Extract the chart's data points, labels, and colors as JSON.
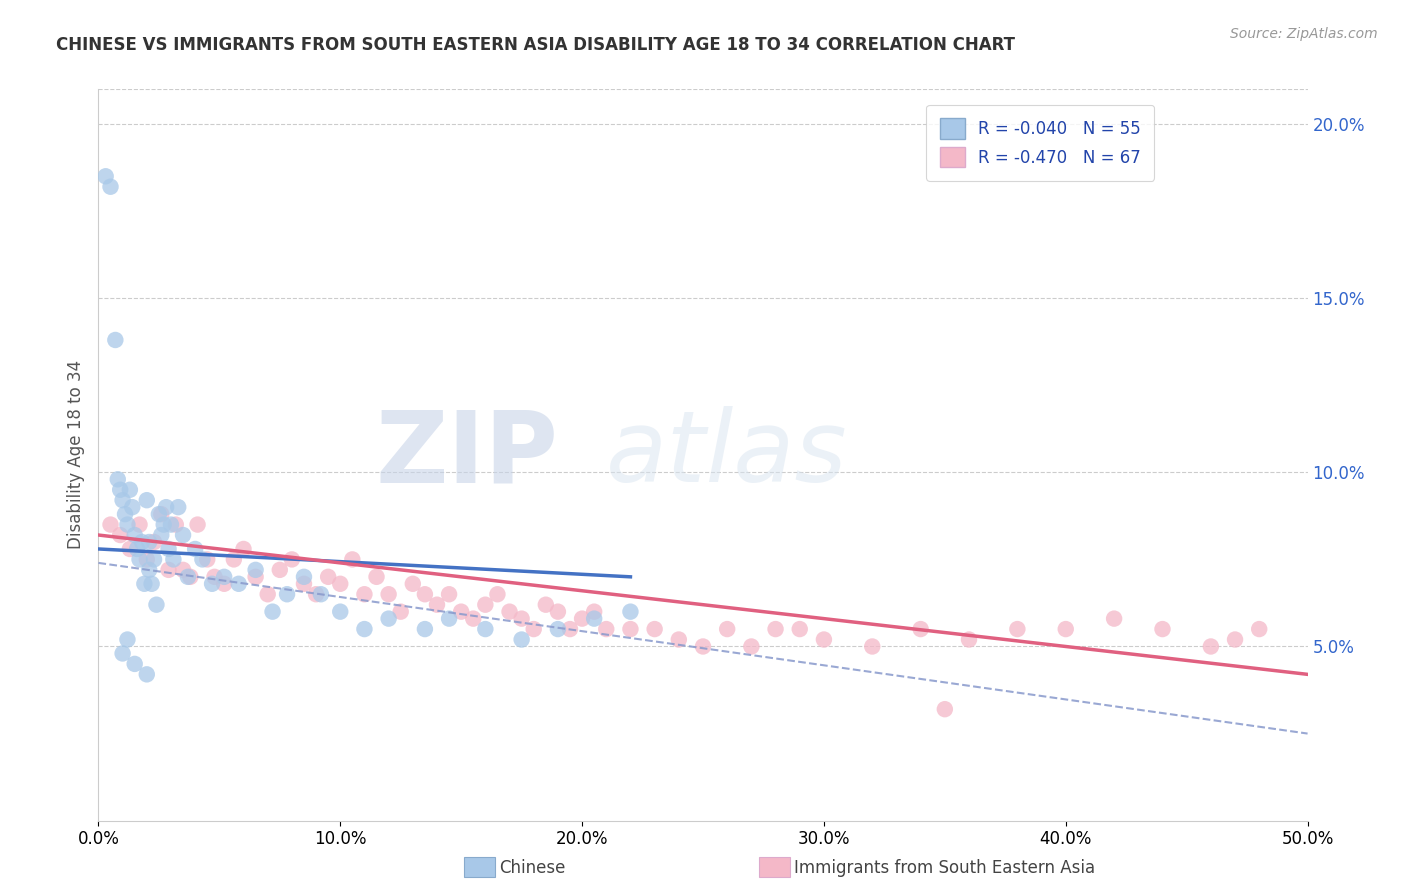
{
  "title": "CHINESE VS IMMIGRANTS FROM SOUTH EASTERN ASIA DISABILITY AGE 18 TO 34 CORRELATION CHART",
  "source": "Source: ZipAtlas.com",
  "ylabel": "Disability Age 18 to 34",
  "xlim": [
    0,
    50
  ],
  "ylim": [
    0,
    21
  ],
  "chinese_color": "#a8c8e8",
  "sea_color": "#f4b8c8",
  "chinese_line_color": "#4472c4",
  "sea_line_color": "#e06080",
  "chinese_dash_color": "#8899cc",
  "legend_R_chinese": "R = -0.040",
  "legend_N_chinese": "N = 55",
  "legend_R_sea": "R = -0.470",
  "legend_N_sea": "N = 67",
  "background_color": "#ffffff",
  "grid_color": "#cccccc",
  "chinese_x": [
    0.3,
    0.5,
    0.7,
    0.8,
    0.9,
    1.0,
    1.1,
    1.2,
    1.3,
    1.4,
    1.5,
    1.6,
    1.7,
    1.8,
    1.9,
    2.0,
    2.1,
    2.1,
    2.2,
    2.3,
    2.4,
    2.5,
    2.6,
    2.7,
    2.8,
    2.9,
    3.0,
    3.1,
    3.3,
    3.5,
    3.7,
    4.0,
    4.3,
    4.7,
    5.2,
    5.8,
    6.5,
    7.2,
    7.8,
    8.5,
    9.2,
    10.0,
    11.0,
    12.0,
    13.5,
    14.5,
    16.0,
    17.5,
    19.0,
    20.5,
    22.0,
    1.0,
    1.2,
    1.5,
    2.0
  ],
  "chinese_y": [
    18.5,
    18.2,
    13.8,
    9.8,
    9.5,
    9.2,
    8.8,
    8.5,
    9.5,
    9.0,
    8.2,
    7.8,
    7.5,
    8.0,
    6.8,
    9.2,
    8.0,
    7.2,
    6.8,
    7.5,
    6.2,
    8.8,
    8.2,
    8.5,
    9.0,
    7.8,
    8.5,
    7.5,
    9.0,
    8.2,
    7.0,
    7.8,
    7.5,
    6.8,
    7.0,
    6.8,
    7.2,
    6.0,
    6.5,
    7.0,
    6.5,
    6.0,
    5.5,
    5.8,
    5.5,
    5.8,
    5.5,
    5.2,
    5.5,
    5.8,
    6.0,
    4.8,
    5.2,
    4.5,
    4.2
  ],
  "sea_x": [
    0.5,
    0.9,
    1.3,
    1.7,
    2.0,
    2.3,
    2.6,
    2.9,
    3.2,
    3.5,
    3.8,
    4.1,
    4.5,
    4.8,
    5.2,
    5.6,
    6.0,
    6.5,
    7.0,
    7.5,
    8.0,
    8.5,
    9.0,
    9.5,
    10.0,
    10.5,
    11.0,
    11.5,
    12.0,
    12.5,
    13.0,
    13.5,
    14.0,
    14.5,
    15.0,
    15.5,
    16.0,
    16.5,
    17.0,
    17.5,
    18.0,
    18.5,
    19.0,
    19.5,
    20.0,
    20.5,
    21.0,
    22.0,
    23.0,
    24.0,
    25.0,
    26.0,
    27.0,
    28.0,
    29.0,
    30.0,
    32.0,
    34.0,
    36.0,
    38.0,
    40.0,
    42.0,
    44.0,
    46.0,
    47.0,
    48.0,
    35.0
  ],
  "sea_y": [
    8.5,
    8.2,
    7.8,
    8.5,
    7.5,
    8.0,
    8.8,
    7.2,
    8.5,
    7.2,
    7.0,
    8.5,
    7.5,
    7.0,
    6.8,
    7.5,
    7.8,
    7.0,
    6.5,
    7.2,
    7.5,
    6.8,
    6.5,
    7.0,
    6.8,
    7.5,
    6.5,
    7.0,
    6.5,
    6.0,
    6.8,
    6.5,
    6.2,
    6.5,
    6.0,
    5.8,
    6.2,
    6.5,
    6.0,
    5.8,
    5.5,
    6.2,
    6.0,
    5.5,
    5.8,
    6.0,
    5.5,
    5.5,
    5.5,
    5.2,
    5.0,
    5.5,
    5.0,
    5.5,
    5.5,
    5.2,
    5.0,
    5.5,
    5.2,
    5.5,
    5.5,
    5.8,
    5.5,
    5.0,
    5.2,
    5.5,
    3.2
  ],
  "chinese_line_x0": 0,
  "chinese_line_y0": 7.8,
  "chinese_line_x1": 22,
  "chinese_line_y1": 7.0,
  "sea_line_x0": 0,
  "sea_line_y0": 8.2,
  "sea_line_x1": 50,
  "sea_line_y1": 4.2,
  "dash_line_x0": 0,
  "dash_line_y0": 7.4,
  "dash_line_x1": 50,
  "dash_line_y1": 2.5
}
